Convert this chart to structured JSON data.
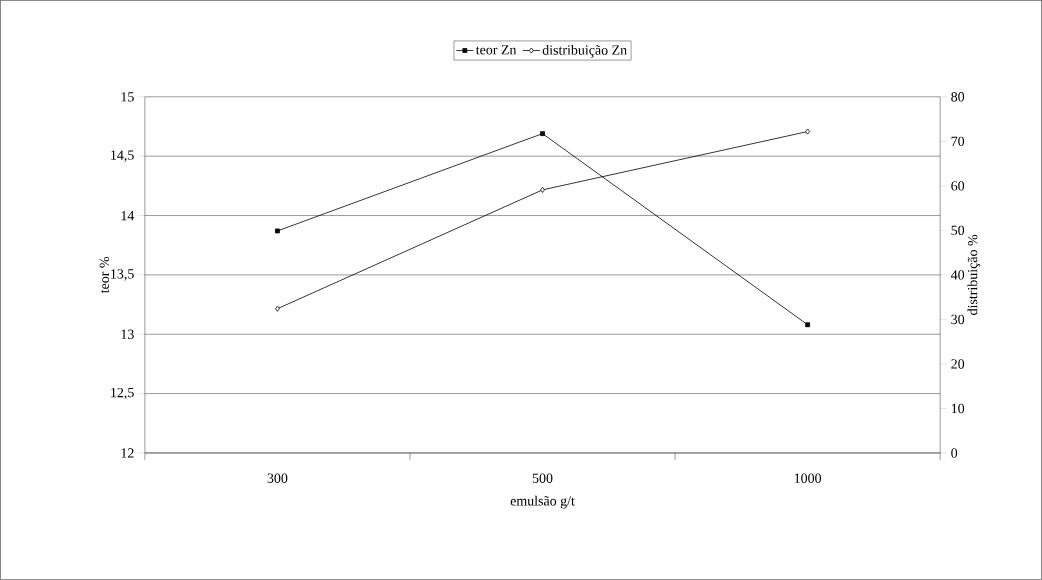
{
  "chart_data": {
    "type": "line",
    "categories": [
      "300",
      "500",
      "1000"
    ],
    "xlabel": "emulsão g/t",
    "ylabel": "teor %",
    "y2label": "distribuição %",
    "series": [
      {
        "name": "teor Zn",
        "color": "#000000",
        "marker": "square",
        "values": [
          13.87,
          14.69,
          13.08
        ]
      },
      {
        "name": "distribuição Zn",
        "color": "#000000",
        "marker": "diamond",
        "axis": "y2",
        "values": [
          32.4,
          59.1,
          72.2
        ]
      }
    ],
    "ylim": [
      12,
      15
    ],
    "yticks": [
      12,
      {
        "value": 12.5,
        "label": "12,5"
      },
      13,
      {
        "value": 13.5,
        "label": "13,5"
      },
      14,
      {
        "value": 14.5,
        "label": "14,5"
      },
      15
    ],
    "y2lim": [
      0,
      80
    ],
    "y2ticks": [
      0,
      10,
      20,
      30,
      40,
      50,
      60,
      70,
      80
    ],
    "grid": "y",
    "legend": "top",
    "line_style": "solid"
  }
}
